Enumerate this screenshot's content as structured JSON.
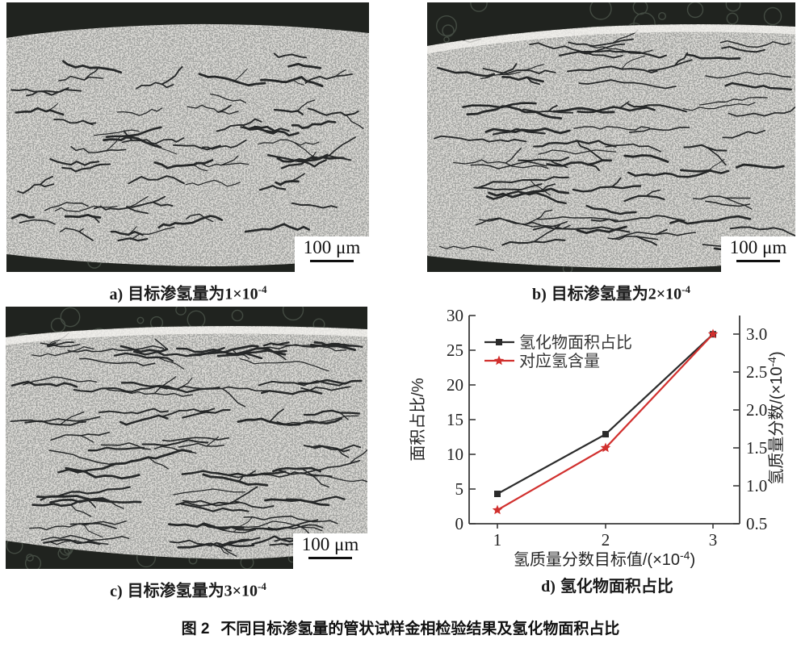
{
  "figure": {
    "panels": {
      "a": {
        "caption": {
          "label": "a)",
          "text": "目标渗氢量为",
          "base": "1×10",
          "sup": "-4"
        },
        "scale_bar": "100 μm"
      },
      "b": {
        "caption": {
          "label": "b)",
          "text": "目标渗氢量为",
          "base": "2×10",
          "sup": "-4"
        },
        "scale_bar": "100 μm"
      },
      "c": {
        "caption": {
          "label": "c)",
          "text": "目标渗氢量为",
          "base": "3×10",
          "sup": "-4"
        },
        "scale_bar": "100 μm"
      },
      "d": {
        "caption": {
          "label": "d)",
          "text": "氢化物面积占比"
        }
      }
    },
    "caption": {
      "num": "图 2",
      "text": "不同目标渗氢量的管状试样金相检验结果及氢化物面积占比"
    }
  },
  "chart_data": {
    "type": "line",
    "x": [
      1,
      2,
      3
    ],
    "series": [
      {
        "name": "氢化物面积占比",
        "axis": "left",
        "color": "#2b2b2b",
        "marker": "square",
        "values": [
          4.3,
          12.9,
          27.3
        ]
      },
      {
        "name": "对应氢含量",
        "axis": "right",
        "color": "#d1302e",
        "marker": "star",
        "values": [
          0.68,
          1.5,
          3.0
        ]
      }
    ],
    "xlabel": {
      "main": "氢质量分数目标值/(×10",
      "sup": "-4",
      "tail": ")"
    },
    "ylabel_left": "面积占比/%",
    "ylabel_right": {
      "main": "氢质量分数/(×10",
      "sup": "-4",
      "tail": ")"
    },
    "x_ticks": [
      1,
      2,
      3
    ],
    "left_ticks": [
      0,
      5,
      10,
      15,
      20,
      25,
      30
    ],
    "right_ticks": [
      0.5,
      1.0,
      1.5,
      2.0,
      2.5,
      3.0
    ],
    "ylim_left": [
      0,
      30
    ],
    "ylim_right": [
      0.5,
      3.0
    ],
    "grid": false,
    "legend_position": "top-left",
    "axis_color": "#3a3a3a"
  }
}
